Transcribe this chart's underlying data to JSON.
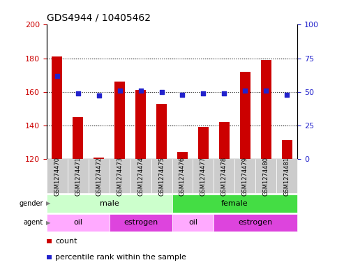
{
  "title": "GDS4944 / 10405462",
  "samples": [
    "GSM1274470",
    "GSM1274471",
    "GSM1274472",
    "GSM1274473",
    "GSM1274474",
    "GSM1274475",
    "GSM1274476",
    "GSM1274477",
    "GSM1274478",
    "GSM1274479",
    "GSM1274480",
    "GSM1274481"
  ],
  "counts": [
    181,
    145,
    121,
    166,
    161,
    153,
    124,
    139,
    142,
    172,
    179,
    131
  ],
  "percentile_ranks": [
    62,
    49,
    47,
    51,
    51,
    50,
    48,
    49,
    49,
    51,
    51,
    48
  ],
  "ylim_left": [
    120,
    200
  ],
  "ylim_right": [
    0,
    100
  ],
  "yticks_left": [
    120,
    140,
    160,
    180,
    200
  ],
  "yticks_right": [
    0,
    25,
    50,
    75,
    100
  ],
  "bar_color": "#cc0000",
  "dot_color": "#2222cc",
  "gender_rows": [
    {
      "label": "male",
      "start": 0,
      "end": 6,
      "color": "#ccffcc"
    },
    {
      "label": "female",
      "start": 6,
      "end": 12,
      "color": "#44dd44"
    }
  ],
  "agent_rows": [
    {
      "label": "oil",
      "start": 0,
      "end": 3,
      "color": "#ffaaff"
    },
    {
      "label": "estrogen",
      "start": 3,
      "end": 6,
      "color": "#dd44dd"
    },
    {
      "label": "oil",
      "start": 6,
      "end": 8,
      "color": "#ffaaff"
    },
    {
      "label": "estrogen",
      "start": 8,
      "end": 12,
      "color": "#dd44dd"
    }
  ],
  "legend_count": "count",
  "legend_pct": "percentile rank within the sample",
  "row_label_gender": "gender",
  "row_label_agent": "agent",
  "grid_yticks": [
    140,
    160,
    180
  ],
  "tick_bg_color": "#cccccc"
}
